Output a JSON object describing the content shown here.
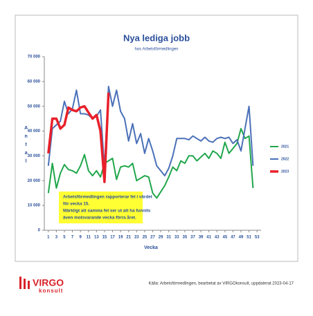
{
  "chart_data": {
    "type": "line",
    "title": "Nya lediga jobb",
    "subtitle": "hos Arbetsförmedlingen",
    "x_label": "Vecka",
    "y_label": "Antal",
    "annotation": [
      "Arbetsförmedlingen rapporterar fel i värdet",
      "för vecka 15.",
      "Märkligt att samma fel ser ut att ha funnits",
      "även motsvarande vecka förra året."
    ],
    "source": "Källa: Arbetsförmedlingen, bearbetat av VIRGOkonsult, uppdaterat 2023-04-17",
    "logo": [
      "VIRGO",
      "konsult"
    ],
    "x": [
      1,
      2,
      3,
      4,
      5,
      6,
      7,
      8,
      9,
      10,
      11,
      12,
      13,
      14,
      15,
      16,
      17,
      18,
      19,
      20,
      21,
      22,
      23,
      24,
      25,
      26,
      27,
      28,
      29,
      30,
      31,
      32,
      33,
      34,
      35,
      36,
      37,
      38,
      39,
      40,
      41,
      42,
      43,
      44,
      45,
      46,
      47,
      48,
      49,
      50,
      51,
      52
    ],
    "xlim": [
      0,
      54
    ],
    "xticks": [
      1,
      3,
      5,
      7,
      9,
      11,
      13,
      15,
      17,
      19,
      21,
      23,
      25,
      27,
      29,
      31,
      33,
      35,
      37,
      39,
      41,
      43,
      45,
      47,
      49,
      51,
      53
    ],
    "ylim": [
      0,
      70000
    ],
    "yticks": [
      0,
      {
        "value": 10000,
        "label": "10 000"
      },
      {
        "value": 20000,
        "label": "20 000"
      },
      {
        "value": 30000,
        "label": "30 000"
      },
      {
        "value": 40000,
        "label": "40 000"
      },
      {
        "value": 50000,
        "label": "50 000"
      },
      {
        "value": 60000,
        "label": "60 000"
      },
      {
        "value": 70000,
        "label": "70 000"
      }
    ],
    "grid": false,
    "legend": "right",
    "series": [
      {
        "name": "2021",
        "color": "#1fa64a",
        "width": 2,
        "values": [
          15000,
          27000,
          17000,
          23000,
          26500,
          24500,
          24000,
          23000,
          26000,
          30500,
          24000,
          22000,
          24000,
          21500,
          27000,
          28000,
          29000,
          20500,
          25500,
          26000,
          25500,
          27000,
          20000,
          21000,
          22000,
          21500,
          15000,
          13000,
          15500,
          18000,
          21500,
          25500,
          24000,
          28000,
          27000,
          30000,
          30000,
          28000,
          29500,
          31000,
          29000,
          32000,
          31000,
          29000,
          35500,
          31000,
          33000,
          35000,
          41000,
          37000,
          38000,
          17000
        ]
      },
      {
        "name": "2022",
        "color": "#4a70b8",
        "width": 2,
        "values": [
          26000,
          41000,
          42500,
          44000,
          52000,
          47000,
          49000,
          56500,
          47000,
          47000,
          46500,
          45000,
          46000,
          48500,
          25000,
          58000,
          50000,
          56500,
          48000,
          45000,
          36000,
          43000,
          35000,
          39000,
          31000,
          37000,
          32000,
          26000,
          24000,
          22000,
          25000,
          30000,
          37000,
          37000,
          37000,
          36500,
          38000,
          37000,
          36000,
          37500,
          36000,
          35500,
          37000,
          37500,
          37000,
          37500,
          35000,
          36500,
          32000,
          41000,
          50000,
          26000
        ]
      },
      {
        "name": "2023",
        "color": "#e8202a",
        "width": 3.5,
        "values": [
          31000,
          45000,
          45000,
          41000,
          42500,
          49500,
          48500,
          48000,
          49500,
          50000,
          47500,
          45000,
          46500,
          40000,
          19500,
          55500,
          null,
          null,
          null,
          null,
          null,
          null,
          null,
          null,
          null,
          null,
          null,
          null,
          null,
          null,
          null,
          null,
          null,
          null,
          null,
          null,
          null,
          null,
          null,
          null,
          null,
          null,
          null,
          null,
          null,
          null,
          null,
          null,
          null,
          null,
          null,
          null
        ]
      }
    ]
  }
}
